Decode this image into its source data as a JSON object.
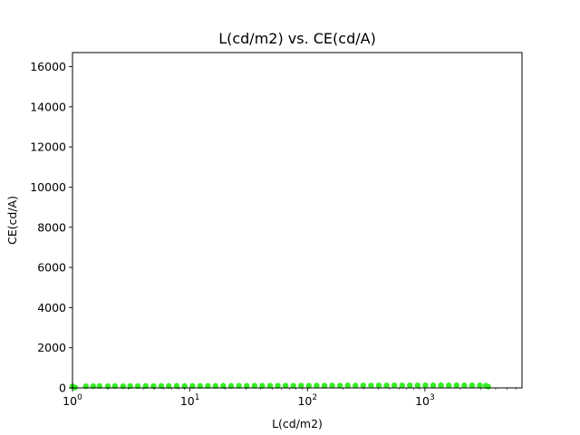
{
  "chart_data": {
    "type": "scatter",
    "title": "L(cd/m2) vs. CE(cd/A)",
    "xlabel": "L(cd/m2)",
    "ylabel": "CE(cd/A)",
    "xscale": "log",
    "xlim": [
      1,
      6700
    ],
    "ylim": [
      0,
      16700
    ],
    "grid": false,
    "x_ticks": [
      {
        "value": 1,
        "base": "10",
        "exp": "0"
      },
      {
        "value": 10,
        "base": "10",
        "exp": "1"
      },
      {
        "value": 100,
        "base": "10",
        "exp": "2"
      },
      {
        "value": 1000,
        "base": "10",
        "exp": "3"
      }
    ],
    "y_ticks": [
      {
        "value": 0,
        "label": "0"
      },
      {
        "value": 2000,
        "label": "2000"
      },
      {
        "value": 4000,
        "label": "4000"
      },
      {
        "value": 6000,
        "label": "6000"
      },
      {
        "value": 8000,
        "label": "8000"
      },
      {
        "value": 10000,
        "label": "10000"
      },
      {
        "value": 12000,
        "label": "12000"
      },
      {
        "value": 14000,
        "label": "14000"
      },
      {
        "value": 16000,
        "label": "16000"
      }
    ],
    "series": [
      {
        "color": "#33ee22",
        "x": [
          1.0,
          1.05,
          1.3,
          1.5,
          1.7,
          2.0,
          2.3,
          2.7,
          3.1,
          3.6,
          4.2,
          4.9,
          5.7,
          6.6,
          7.7,
          9.0,
          10.5,
          12.2,
          14.2,
          16.5,
          19.2,
          22.4,
          26.1,
          30.4,
          35.4,
          41.2,
          48.0,
          55.9,
          65.1,
          75.8,
          88.3,
          102.8,
          119.7,
          139.4,
          162.3,
          189.0,
          220.1,
          256.3,
          298.5,
          347.6,
          404.8,
          471.4,
          549.0,
          639.3,
          744.5,
          867.0,
          1009.6,
          1175.7,
          1369.2,
          1594.5,
          1856.8,
          2162.3,
          2518.1,
          2932.4,
          3300.0,
          3450.0
        ],
        "y": [
          75,
          20,
          80,
          85,
          90,
          82,
          88,
          84,
          90,
          86,
          92,
          88,
          94,
          90,
          96,
          92,
          98,
          94,
          100,
          96,
          102,
          98,
          104,
          100,
          106,
          102,
          108,
          104,
          110,
          106,
          112,
          108,
          114,
          110,
          116,
          112,
          118,
          114,
          120,
          116,
          122,
          118,
          124,
          120,
          126,
          122,
          128,
          124,
          130,
          126,
          128,
          124,
          126,
          122,
          110,
          60
        ]
      }
    ]
  }
}
